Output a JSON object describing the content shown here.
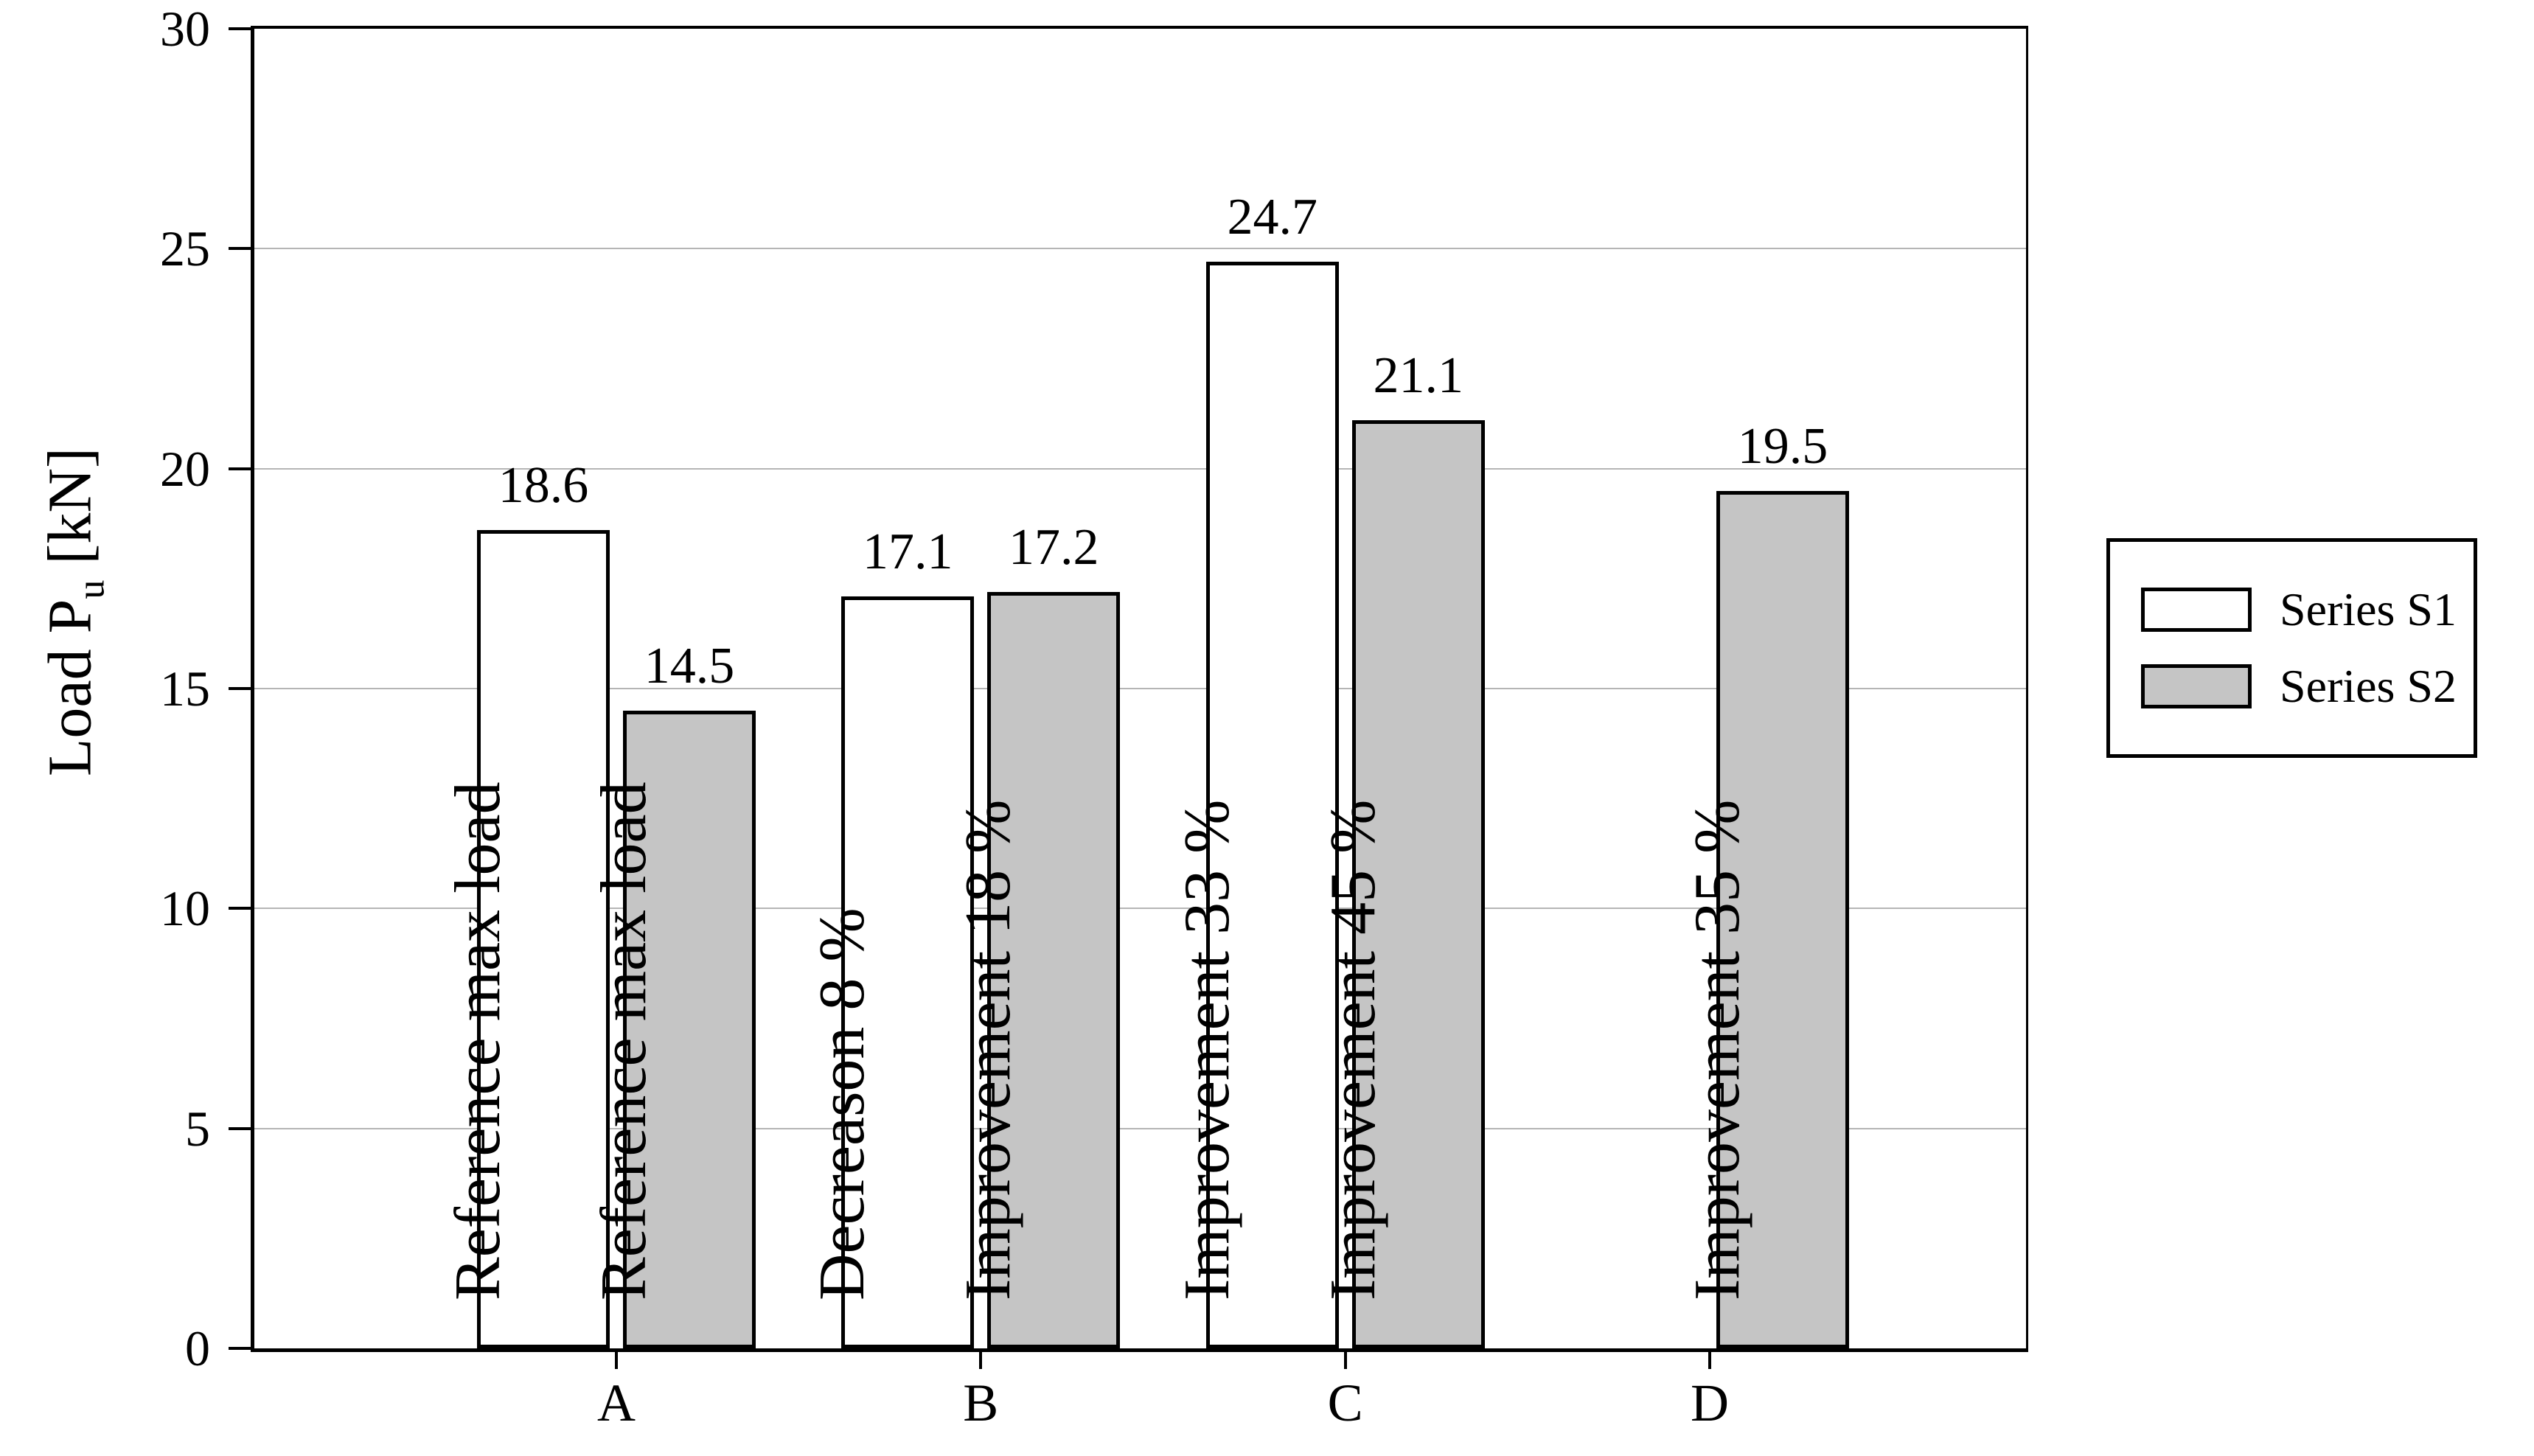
{
  "chart_data": {
    "type": "bar",
    "title": "",
    "categories": [
      "A",
      "B",
      "C",
      "D"
    ],
    "series": [
      {
        "name": "Series S1",
        "color": "#ffffff",
        "values": [
          18.6,
          17.1,
          24.7,
          null
        ],
        "value_labels": [
          "18.6",
          "17.1",
          "24.7",
          null
        ],
        "bar_texts": [
          "Reference max load",
          "Decreason 8 %",
          "Improvement 33 %",
          null
        ]
      },
      {
        "name": "Series S2",
        "color": "#c5c5c5",
        "values": [
          14.5,
          17.2,
          21.1,
          19.5
        ],
        "value_labels": [
          "14.5",
          "17.2",
          "21.1",
          "19.5"
        ],
        "bar_texts": [
          "Reference max load",
          "Improvement 18 %",
          "Improvement 45 %",
          "Improvement 35 %"
        ]
      }
    ],
    "xlabel": "",
    "ylabel": "Load Pu [kN]",
    "ylabel_parts": {
      "main": "Load P",
      "sub": "u",
      "unit": " [kN]"
    },
    "ylim": [
      0,
      30
    ],
    "yticks": [
      "0",
      "5",
      "10",
      "15",
      "20",
      "25",
      "30"
    ],
    "grid": "horizontal",
    "legend_position": "right-outside",
    "colors": {
      "grid": "#b5b5b5",
      "axis": "#000000",
      "bar_border": "#000000",
      "text": "#000000",
      "background": "#ffffff"
    }
  }
}
